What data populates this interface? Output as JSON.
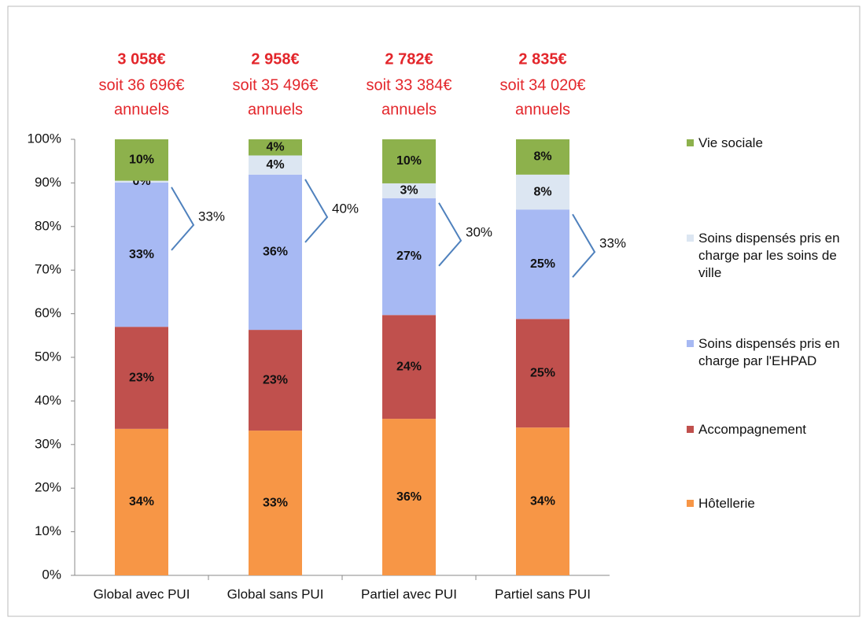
{
  "chart_data": {
    "type": "stacked_bar",
    "categories": [
      "Global avec PUI",
      "Global sans PUI",
      "Partiel avec PUI",
      "Partiel sans PUI"
    ],
    "series": [
      {
        "name": "Hôtellerie",
        "color": "#f79646",
        "values": [
          33.6,
          33.2,
          35.9,
          33.9
        ],
        "value_labels": [
          "34%",
          "33%",
          "36%",
          "34%"
        ]
      },
      {
        "name": "Accompagnement",
        "color": "#c0504d",
        "values": [
          23.4,
          23.1,
          23.8,
          24.9
        ],
        "value_labels": [
          "23%",
          "23%",
          "24%",
          "25%"
        ]
      },
      {
        "name": "Soins dispensés pris en charge par l'EHPAD",
        "color": "#a7b9f3",
        "values": [
          33.1,
          35.6,
          26.8,
          25.1
        ],
        "value_labels": [
          "33%",
          "36%",
          "27%",
          "25%"
        ]
      },
      {
        "name": "Soins dispensés pris en charge par les soins de ville",
        "color": "#dce6f2",
        "values": [
          0.4,
          4.4,
          3.4,
          8.0
        ],
        "value_labels": [
          "0%",
          "4%",
          "3%",
          "8%"
        ]
      },
      {
        "name": "Vie sociale",
        "color": "#8db14c",
        "values": [
          9.5,
          3.7,
          10.1,
          8.1
        ],
        "value_labels": [
          "10%",
          "4%",
          "10%",
          "8%"
        ]
      }
    ],
    "ylim": [
      0,
      100
    ],
    "yticks": [
      {
        "value": 0,
        "label": "0%"
      },
      {
        "value": 10,
        "label": "10%"
      },
      {
        "value": 20,
        "label": "20%"
      },
      {
        "value": 30,
        "label": "30%"
      },
      {
        "value": 40,
        "label": "40%"
      },
      {
        "value": 50,
        "label": "50%"
      },
      {
        "value": 60,
        "label": "60%"
      },
      {
        "value": 70,
        "label": "70%"
      },
      {
        "value": 80,
        "label": "80%"
      },
      {
        "value": 90,
        "label": "90%"
      },
      {
        "value": 100,
        "label": "100%"
      }
    ],
    "top_labels": [
      {
        "total": "3 058€",
        "annual": "soit 36 696€",
        "suffix": "annuels"
      },
      {
        "total": "2 958€",
        "annual": "soit 35 496€",
        "suffix": "annuels"
      },
      {
        "total": "2 782€",
        "annual": "soit 33 384€",
        "suffix": "annuels"
      },
      {
        "total": "2 835€",
        "annual": "soit 34 020€",
        "suffix": "annuels"
      }
    ],
    "brace_labels": [
      "33%",
      "40%",
      "30%",
      "33%"
    ]
  }
}
